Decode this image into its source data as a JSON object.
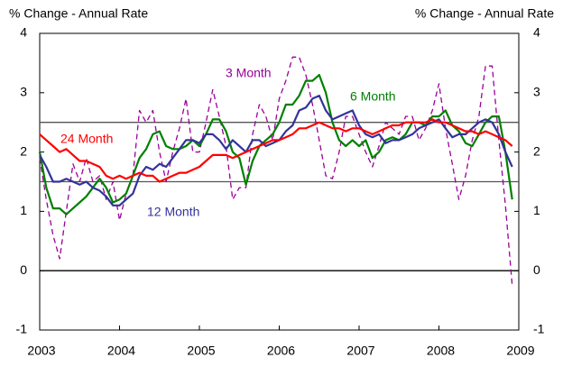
{
  "chart_data": {
    "type": "line",
    "y_label": "% Change - Annual Rate",
    "y2_label": "% Change - Annual Rate",
    "x": [
      2003,
      2003.083,
      2003.167,
      2003.25,
      2003.333,
      2003.417,
      2003.5,
      2003.583,
      2003.667,
      2003.75,
      2003.833,
      2003.917,
      2004,
      2004.083,
      2004.167,
      2004.25,
      2004.333,
      2004.417,
      2004.5,
      2004.583,
      2004.667,
      2004.75,
      2004.833,
      2004.917,
      2005,
      2005.083,
      2005.167,
      2005.25,
      2005.333,
      2005.417,
      2005.5,
      2005.583,
      2005.667,
      2005.75,
      2005.833,
      2005.917,
      2006,
      2006.083,
      2006.167,
      2006.25,
      2006.333,
      2006.417,
      2006.5,
      2006.583,
      2006.667,
      2006.75,
      2006.833,
      2006.917,
      2007,
      2007.083,
      2007.167,
      2007.25,
      2007.333,
      2007.417,
      2007.5,
      2007.583,
      2007.667,
      2007.75,
      2007.833,
      2007.917,
      2008,
      2008.083,
      2008.167,
      2008.25,
      2008.333,
      2008.417,
      2008.5,
      2008.583,
      2008.667,
      2008.75,
      2008.833,
      2008.917
    ],
    "series": [
      {
        "name": "3 Month",
        "color": "#990099",
        "dashed": true,
        "values": [
          1.9,
          1.2,
          0.6,
          0.2,
          1.0,
          1.8,
          1.5,
          1.9,
          1.5,
          1.6,
          1.2,
          1.5,
          0.85,
          1.3,
          1.6,
          2.7,
          2.5,
          2.7,
          2.0,
          1.5,
          2.0,
          2.4,
          2.9,
          2.0,
          2.0,
          2.5,
          3.05,
          2.6,
          2.1,
          1.2,
          1.4,
          1.4,
          2.3,
          2.8,
          2.6,
          2.2,
          2.9,
          3.2,
          3.6,
          3.6,
          3.3,
          2.8,
          2.2,
          1.6,
          1.55,
          2.0,
          2.6,
          2.6,
          2.3,
          2.0,
          1.75,
          2.1,
          2.5,
          2.4,
          2.3,
          2.6,
          2.6,
          2.2,
          2.4,
          2.7,
          3.15,
          2.4,
          1.8,
          1.2,
          1.6,
          2.2,
          2.6,
          3.45,
          3.45,
          2.2,
          1.1,
          -0.25
        ]
      },
      {
        "name": "6 Month",
        "color": "#008000",
        "dashed": false,
        "values": [
          2.0,
          1.4,
          1.05,
          1.05,
          0.95,
          1.05,
          1.15,
          1.25,
          1.4,
          1.55,
          1.4,
          1.15,
          1.2,
          1.3,
          1.6,
          1.9,
          2.05,
          2.3,
          2.35,
          2.1,
          2.05,
          2.05,
          2.1,
          2.2,
          2.1,
          2.3,
          2.55,
          2.55,
          2.35,
          2.0,
          1.9,
          1.45,
          1.85,
          2.1,
          2.2,
          2.3,
          2.5,
          2.8,
          2.8,
          2.95,
          3.2,
          3.2,
          3.3,
          3.0,
          2.5,
          2.2,
          2.1,
          2.2,
          2.1,
          2.2,
          1.9,
          2.0,
          2.2,
          2.25,
          2.2,
          2.3,
          2.5,
          2.5,
          2.45,
          2.6,
          2.6,
          2.7,
          2.45,
          2.35,
          2.15,
          2.1,
          2.3,
          2.5,
          2.6,
          2.6,
          2.0,
          1.2
        ]
      },
      {
        "name": "12 Month",
        "color": "#333399",
        "dashed": false,
        "values": [
          1.95,
          1.75,
          1.5,
          1.5,
          1.55,
          1.5,
          1.45,
          1.5,
          1.4,
          1.35,
          1.25,
          1.1,
          1.1,
          1.2,
          1.3,
          1.6,
          1.75,
          1.7,
          1.8,
          1.75,
          1.9,
          2.05,
          2.2,
          2.2,
          2.15,
          2.3,
          2.3,
          2.2,
          2.05,
          2.2,
          2.1,
          2.0,
          2.2,
          2.2,
          2.1,
          2.15,
          2.2,
          2.35,
          2.45,
          2.7,
          2.75,
          2.9,
          2.95,
          2.7,
          2.55,
          2.6,
          2.65,
          2.7,
          2.45,
          2.3,
          2.25,
          2.3,
          2.15,
          2.2,
          2.2,
          2.25,
          2.3,
          2.4,
          2.45,
          2.5,
          2.55,
          2.4,
          2.25,
          2.3,
          2.3,
          2.4,
          2.5,
          2.55,
          2.5,
          2.3,
          2.0,
          1.75
        ]
      },
      {
        "name": "24 Month",
        "color": "#ff0000",
        "dashed": false,
        "values": [
          2.3,
          2.2,
          2.1,
          2.0,
          2.05,
          1.95,
          1.85,
          1.85,
          1.8,
          1.75,
          1.6,
          1.55,
          1.6,
          1.55,
          1.6,
          1.65,
          1.6,
          1.6,
          1.5,
          1.55,
          1.6,
          1.65,
          1.65,
          1.7,
          1.75,
          1.85,
          1.95,
          1.95,
          1.95,
          1.9,
          1.95,
          2.0,
          2.05,
          2.1,
          2.15,
          2.2,
          2.2,
          2.25,
          2.3,
          2.4,
          2.4,
          2.45,
          2.5,
          2.45,
          2.4,
          2.4,
          2.35,
          2.4,
          2.4,
          2.35,
          2.3,
          2.35,
          2.4,
          2.45,
          2.45,
          2.5,
          2.5,
          2.5,
          2.5,
          2.55,
          2.5,
          2.5,
          2.45,
          2.4,
          2.35,
          2.35,
          2.3,
          2.35,
          2.3,
          2.25,
          2.2,
          2.1
        ]
      }
    ],
    "xlim": [
      2003,
      2009
    ],
    "xticks": [
      2003,
      2004,
      2005,
      2006,
      2007,
      2008,
      2009
    ],
    "ylim": [
      -1,
      4
    ],
    "yticks": [
      -1,
      0,
      1,
      2,
      3,
      4
    ],
    "y2lim": [
      -1,
      4
    ],
    "y2ticks": [
      -1,
      0,
      1,
      2,
      3,
      4
    ],
    "reference_lines": [
      2.5,
      1.5,
      0
    ]
  }
}
